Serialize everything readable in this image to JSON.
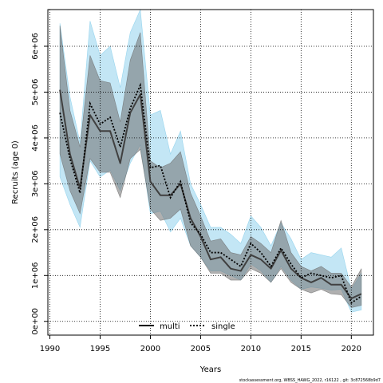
{
  "chart_data": {
    "type": "line",
    "title": "",
    "xlabel": "Years",
    "ylabel": "Recruits (age 0)",
    "xlim": [
      1989.8,
      2022.2
    ],
    "ylim": [
      -300000,
      6800000
    ],
    "grid": true,
    "x_ticks": [
      1990,
      1995,
      2000,
      2005,
      2010,
      2015,
      2020
    ],
    "x_tick_labels": [
      "1990",
      "1995",
      "2000",
      "2005",
      "2010",
      "2015",
      "2020"
    ],
    "y_ticks": [
      0,
      1000000,
      2000000,
      3000000,
      4000000,
      5000000,
      6000000
    ],
    "y_tick_labels": [
      "0e+00",
      "1e+06",
      "2e+06",
      "3e+06",
      "4e+06",
      "5e+06",
      "6e+06"
    ],
    "legend_position": "bottom-center",
    "x": [
      1991,
      1992,
      1993,
      1994,
      1995,
      1996,
      1997,
      1998,
      1999,
      2000,
      2001,
      2002,
      2003,
      2004,
      2005,
      2006,
      2007,
      2008,
      2009,
      2010,
      2011,
      2012,
      2013,
      2014,
      2015,
      2016,
      2017,
      2018,
      2019,
      2020,
      2021
    ],
    "series": [
      {
        "name": "multi",
        "color": "#404040",
        "band_color": "#707070",
        "values": [
          5050000,
          3650000,
          2900000,
          4500000,
          4150000,
          4150000,
          3450000,
          4550000,
          4950000,
          3050000,
          2750000,
          2750000,
          3000000,
          2250000,
          1850000,
          1350000,
          1400000,
          1150000,
          1100000,
          1450000,
          1350000,
          1150000,
          1550000,
          1150000,
          950000,
          850000,
          950000,
          800000,
          800000,
          500000,
          600000
        ],
        "lower": [
          3650000,
          2850000,
          2350000,
          3550000,
          3250000,
          3250000,
          2700000,
          3550000,
          3750000,
          2450000,
          2200000,
          2250000,
          2450000,
          1650000,
          1400000,
          1050000,
          1050000,
          900000,
          900000,
          1150000,
          1050000,
          850000,
          1150000,
          850000,
          700000,
          620000,
          700000,
          600000,
          580000,
          300000,
          350000
        ],
        "upper": [
          6450000,
          4600000,
          3800000,
          5800000,
          5250000,
          5200000,
          4350000,
          5700000,
          6300000,
          3500000,
          3350000,
          3450000,
          3700000,
          2800000,
          2300000,
          1750000,
          1800000,
          1500000,
          1450000,
          1850000,
          1700000,
          1500000,
          2200000,
          1500000,
          1200000,
          1100000,
          1200000,
          1050000,
          1050000,
          750000,
          1150000
        ]
      },
      {
        "name": "single",
        "color": "#000000",
        "band_color": "#87CEEB",
        "values": [
          4550000,
          3550000,
          2800000,
          4750000,
          4300000,
          4450000,
          3800000,
          4650000,
          5150000,
          3350000,
          3400000,
          2700000,
          3050000,
          2150000,
          1900000,
          1500000,
          1500000,
          1350000,
          1200000,
          1700000,
          1500000,
          1200000,
          1600000,
          1250000,
          950000,
          1050000,
          1000000,
          950000,
          1000000,
          400000,
          550000
        ],
        "lower": [
          3150000,
          2550000,
          2050000,
          3500000,
          3150000,
          3300000,
          2850000,
          3450000,
          3850000,
          2350000,
          2400000,
          1950000,
          2250000,
          1650000,
          1400000,
          1100000,
          1100000,
          1000000,
          900000,
          1250000,
          1100000,
          850000,
          1200000,
          900000,
          700000,
          750000,
          720000,
          680000,
          700000,
          200000,
          250000
        ],
        "upper": [
          6500000,
          4900000,
          3900000,
          6550000,
          5800000,
          6000000,
          5100000,
          6300000,
          6800000,
          4500000,
          4600000,
          3650000,
          4150000,
          3000000,
          2550000,
          2050000,
          2050000,
          1900000,
          1700000,
          2300000,
          2050000,
          1650000,
          2150000,
          1800000,
          1350000,
          1500000,
          1450000,
          1400000,
          1600000,
          700000,
          1050000
        ]
      }
    ]
  },
  "footer": "stockassessment.org, WBSS_HAWG_2022, r16122 , git: 3c872568b9d7"
}
